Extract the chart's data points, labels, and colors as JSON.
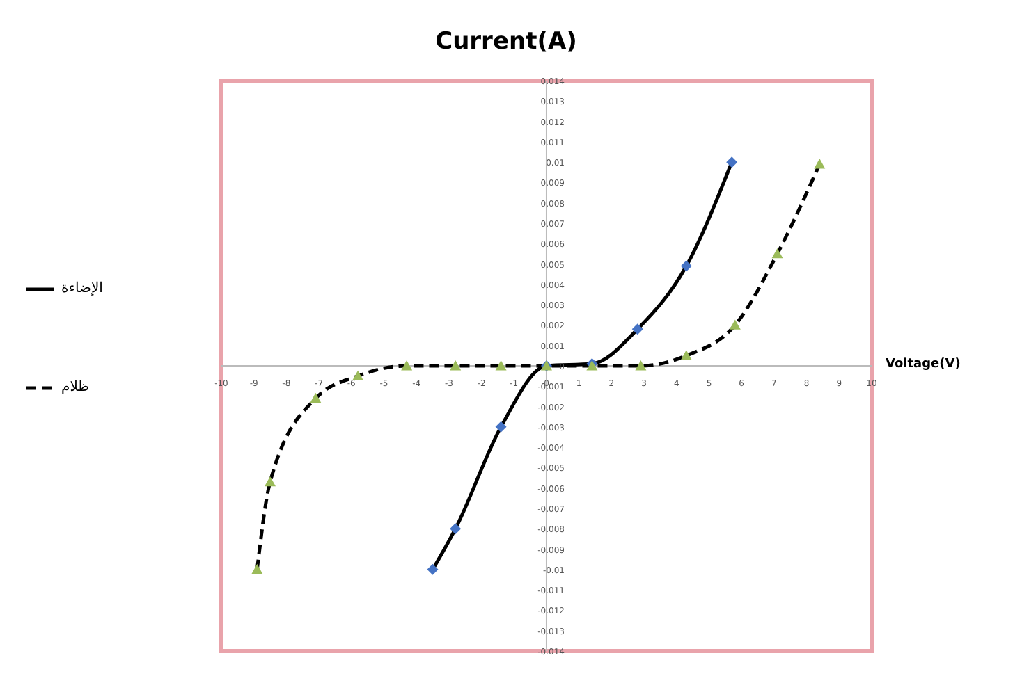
{
  "chart_data": {
    "type": "line",
    "title": "Current(A)",
    "xlabel": "Voltage(V)",
    "xlim": [
      -10,
      10
    ],
    "xticks": [
      -10,
      -9,
      -8,
      -7,
      -6,
      -5,
      -4,
      -3,
      -2,
      -1,
      0,
      1,
      2,
      3,
      4,
      5,
      6,
      7,
      8,
      9,
      10
    ],
    "ylim": [
      -0.014,
      0.014
    ],
    "yticks": [
      -0.014,
      -0.013,
      -0.012,
      -0.011,
      -0.01,
      -0.009,
      -0.008,
      -0.007,
      -0.006,
      -0.005,
      -0.004,
      -0.003,
      -0.002,
      -0.001,
      0,
      0.001,
      0.002,
      0.003,
      0.004,
      0.005,
      0.006,
      0.007,
      0.008,
      0.009,
      0.01,
      0.011,
      0.012,
      0.013,
      0.014
    ],
    "grid": false,
    "legend": "left",
    "line_style": "solid",
    "series": [
      {
        "name": "الإضاءة",
        "color": "#000000",
        "marker": "diamond",
        "colors": [
          "#4472c4",
          "#4472c4",
          "#4472c4",
          "#4472c4",
          "#4472c4",
          "#4472c4",
          "#4472c4",
          "#4472c4"
        ],
        "x": [
          -3.5,
          -2.8,
          -1.4,
          0,
          1.4,
          2.8,
          4.3,
          5.7
        ],
        "values": [
          -0.01,
          -0.008,
          -0.003,
          0,
          0.0001,
          0.0018,
          0.0049,
          0.01
        ]
      },
      {
        "name": "ظلام",
        "color": "#000000",
        "marker": "triangle",
        "line_style": "dashed",
        "colors": [
          "#9bbb59",
          "#9bbb59",
          "#9bbb59",
          "#9bbb59",
          "#9bbb59",
          "#9bbb59",
          "#9bbb59",
          "#9bbb59",
          "#9bbb59",
          "#9bbb59",
          "#9bbb59",
          "#9bbb59",
          "#9bbb59",
          "#9bbb59"
        ],
        "x": [
          -8.9,
          -8.5,
          -7.1,
          -5.8,
          -4.3,
          -2.8,
          -1.4,
          0,
          1.4,
          2.9,
          4.3,
          5.8,
          7.1,
          8.4
        ],
        "values": [
          -0.01,
          -0.0057,
          -0.0016,
          -0.0005,
          0,
          0,
          0,
          0,
          0,
          0,
          0.0005,
          0.002,
          0.0055,
          0.0099
        ]
      }
    ]
  }
}
